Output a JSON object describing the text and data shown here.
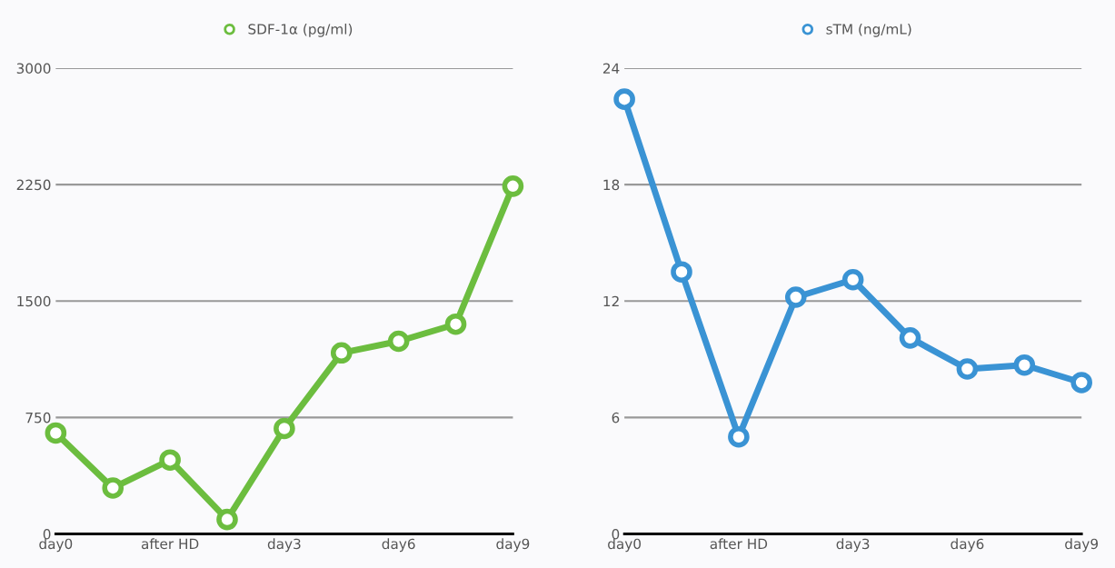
{
  "chart_data": [
    {
      "type": "line",
      "categories": [
        "day0",
        null,
        "after HD",
        null,
        "day3",
        null,
        "day6",
        null,
        "day9"
      ],
      "series": [
        {
          "name": "SDF-1α (pg/ml)",
          "color": "#6cbd3f",
          "values": [
            650,
            296,
            476,
            93,
            679,
            1166,
            1241,
            1351,
            2240
          ]
        }
      ],
      "ylim": [
        0,
        3000
      ],
      "yticks": [
        0,
        750,
        1500,
        2250,
        3000
      ],
      "grid": "y",
      "legend": "top",
      "marker": "circle",
      "line_style": "solid"
    },
    {
      "type": "line",
      "categories": [
        "day0",
        null,
        "after HD",
        null,
        "day3",
        null,
        "day6",
        null,
        "day9"
      ],
      "series": [
        {
          "name": "sTM (ng/mL)",
          "color": "#3a93d4",
          "values": [
            22.4,
            13.5,
            5.0,
            12.2,
            13.1,
            10.1,
            8.5,
            8.7,
            7.8
          ]
        }
      ],
      "ylim": [
        0,
        24
      ],
      "yticks": [
        0,
        6,
        12,
        18,
        24
      ],
      "grid": "y",
      "legend": "top",
      "marker": "circle",
      "line_style": "solid"
    }
  ]
}
